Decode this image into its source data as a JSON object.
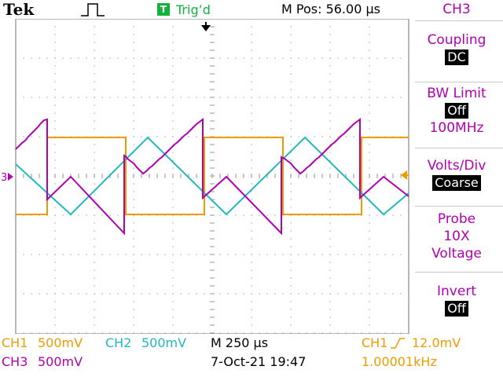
{
  "header": {
    "brand": "Tek",
    "trigger_status_icon": "T",
    "trigger_status": "Trig’d",
    "m_pos": "M Pos: 56.00 µs"
  },
  "plot": {
    "channel_marker": "3",
    "icons": [
      "acquire-pulse-icon",
      "trigger-position-arrow-icon",
      "channel3-ground-marker-icon",
      "trigger-level-arrow-icon"
    ]
  },
  "side_menu": {
    "title": "CH3",
    "coupling_label": "Coupling",
    "coupling_value": "DC",
    "bw_limit_label": "BW Limit",
    "bw_limit_value": "Off",
    "bw_limit_freq": "100MHz",
    "volts_div_label": "Volts/Div",
    "volts_div_value": "Coarse",
    "probe_label": "Probe",
    "probe_atten": "10X",
    "probe_type": "Voltage",
    "invert_label": "Invert",
    "invert_value": "Off"
  },
  "status": {
    "ch1": "CH1",
    "ch1_scale": "500mV",
    "ch2": "CH2",
    "ch2_scale": "500mV",
    "timebase": "M 250 µs",
    "trigger_source": "CH1",
    "trigger_level": "12.0mV",
    "ch3": "CH3",
    "ch3_scale": "500mV",
    "datetime": "7-Oct-21 19:47",
    "frequency": "1.00001kHz"
  },
  "colors": {
    "ch1": "#f09a00",
    "ch2": "#20b8c0",
    "ch3": "#b000b0",
    "trigger_green": "#12b23a"
  }
}
